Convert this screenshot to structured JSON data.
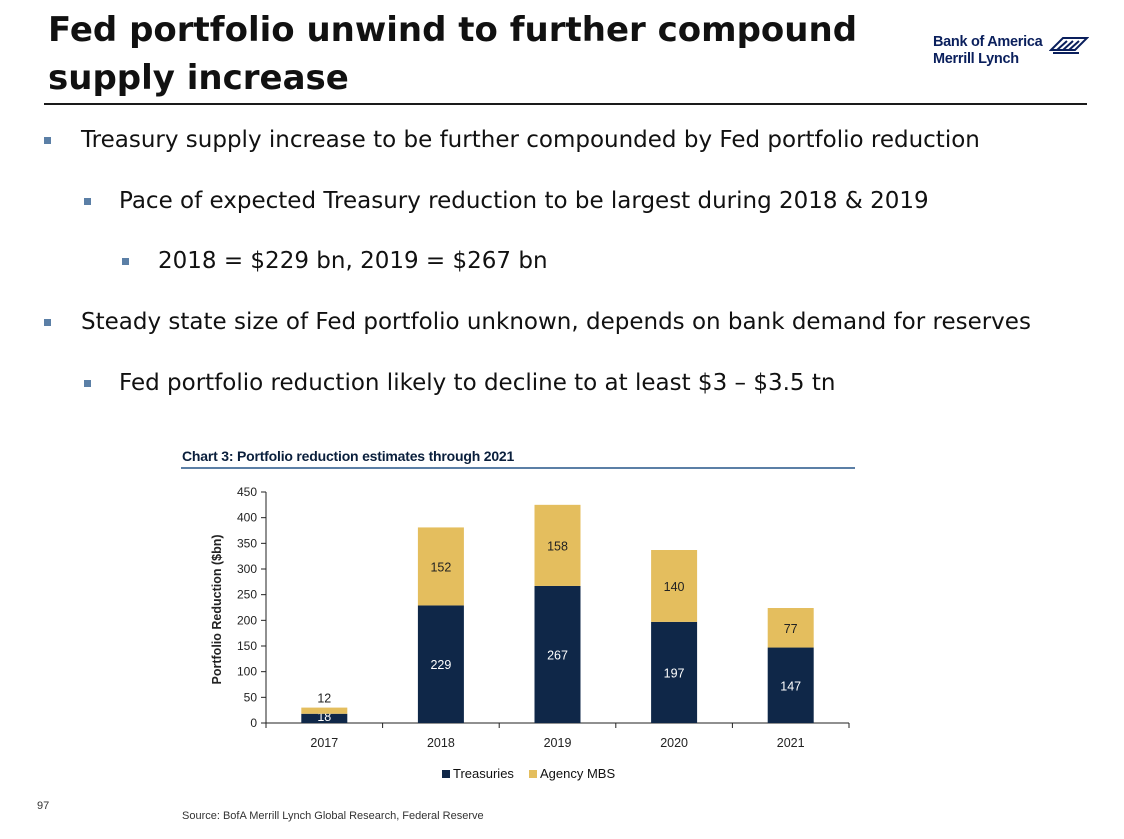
{
  "slide": {
    "title_line1": "Fed portfolio unwind to further compound",
    "title_line2": "supply increase",
    "logo_line1": "Bank of America",
    "logo_line2": "Merrill Lynch",
    "bullets": [
      {
        "level": 1,
        "text": "Treasury supply increase to be further compounded by Fed portfolio reduction"
      },
      {
        "level": 2,
        "text": "Pace of expected Treasury reduction to be largest during 2018 & 2019"
      },
      {
        "level": 3,
        "text": "2018 = $229 bn, 2019 = $267 bn"
      },
      {
        "level": 1,
        "text": "Steady state size of Fed portfolio unknown, depends on bank demand for reserves"
      },
      {
        "level": 2,
        "text": "Fed portfolio reduction likely to decline to at least $3 – $3.5 tn"
      }
    ],
    "source": "Source: BofA Merrill Lynch Global Research, Federal Reserve",
    "page_number": "97"
  },
  "colors": {
    "treasuries": "#0f2748",
    "agency_mbs": "#e4be5e",
    "brand_navy": "#0a1f5c",
    "bullet_marker": "#5b7fa6"
  },
  "chart_data": {
    "type": "bar",
    "stacked": true,
    "title": "Chart 3: Portfolio reduction estimates through 2021",
    "ylabel": "Portfolio Reduction ($bn)",
    "xlabel": "",
    "categories": [
      "2017",
      "2018",
      "2019",
      "2020",
      "2021"
    ],
    "series": [
      {
        "name": "Treasuries",
        "values": [
          18,
          229,
          267,
          197,
          147
        ]
      },
      {
        "name": "Agency MBS",
        "values": [
          12,
          152,
          158,
          140,
          77
        ]
      }
    ],
    "ylim": [
      0,
      450
    ],
    "yticks": [
      0,
      50,
      100,
      150,
      200,
      250,
      300,
      350,
      400,
      450
    ],
    "legend_position": "bottom",
    "grid": false
  }
}
